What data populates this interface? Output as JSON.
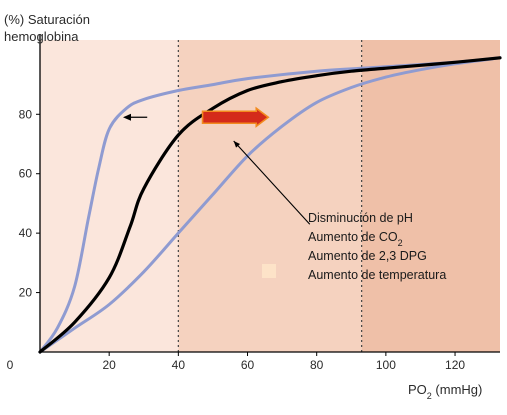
{
  "chart_data": {
    "type": "line",
    "ylabel_line1": "(%) Saturación",
    "ylabel_line2": "hemoglobina",
    "xlabel_main": "PO",
    "xlabel_sub": "2",
    "xlabel_unit": " (mmHg)",
    "xlim": [
      0,
      133
    ],
    "ylim": [
      0,
      105
    ],
    "x_ticks": [
      0,
      20,
      40,
      60,
      80,
      100,
      120
    ],
    "y_ticks": [
      20,
      40,
      60,
      80
    ],
    "origin_label": "0",
    "reference_lines_x": [
      40,
      93
    ],
    "regions": [
      {
        "x0": 0,
        "x1": 40,
        "color": "#fbe6dc"
      },
      {
        "x0": 40,
        "x1": 93,
        "color": "#f5d2bf"
      },
      {
        "x0": 93,
        "x1": 133,
        "color": "#efc0a8"
      }
    ],
    "series": [
      {
        "color": "#000000",
        "x": [
          0,
          10,
          20,
          26,
          30,
          40,
          50,
          60,
          70,
          80,
          90,
          100,
          110,
          120,
          133
        ],
        "y": [
          0,
          10,
          25,
          42,
          55,
          73,
          82,
          88,
          91,
          93,
          94.5,
          95.5,
          96.5,
          97.5,
          99
        ]
      },
      {
        "color": "#8f9bd1",
        "x": [
          0,
          5,
          10,
          14,
          17,
          20,
          25,
          30,
          40,
          50,
          60,
          80,
          100,
          120,
          133
        ],
        "y": [
          0,
          8,
          22,
          45,
          62,
          75,
          82,
          85,
          88,
          90,
          92,
          94.5,
          96,
          97.5,
          99
        ]
      },
      {
        "color": "#8f9bd1",
        "x": [
          0,
          10,
          20,
          30,
          40,
          50,
          60,
          70,
          80,
          90,
          100,
          110,
          120,
          133
        ],
        "y": [
          0,
          8,
          16,
          27,
          40,
          53,
          66,
          76,
          84,
          89,
          92.5,
          95,
          97,
          99
        ]
      }
    ],
    "annotations": [
      {
        "text": "Disminución de pH",
        "sub": ""
      },
      {
        "text": "Aumento de CO",
        "sub": "2"
      },
      {
        "text": "Aumento de 2,3 DPG",
        "sub": ""
      },
      {
        "text": "Aumento de temperatura",
        "sub": ""
      }
    ],
    "left_arrow": {
      "x_from": 31,
      "x_to": 24,
      "y": 79
    },
    "right_arrow": {
      "x_from": 47,
      "x_to": 66,
      "y": 79,
      "color": "#d42a1a",
      "outline": "#f28a1e"
    },
    "pointer_line": {
      "x_from": 56,
      "y_from": 71,
      "x_to": 78,
      "y_to": 43
    },
    "legend_swatch_color": "#fde3c8",
    "colors": {
      "background": "#ffffff",
      "axis": "#000000",
      "text": "#1a1a1a"
    }
  }
}
